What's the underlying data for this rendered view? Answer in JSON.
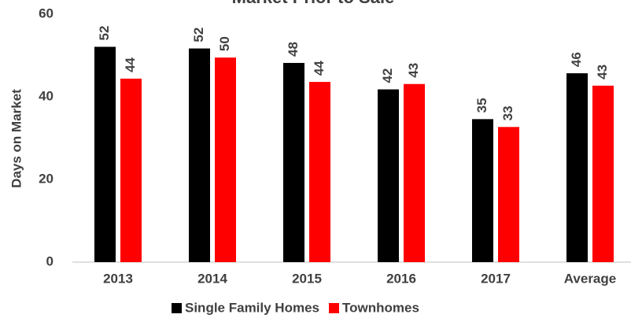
{
  "chart_data": {
    "type": "bar",
    "title": "Market Prior to Sale",
    "y_label": "Days on Market",
    "categories": [
      "2013",
      "2014",
      "2015",
      "2016",
      "2017",
      "Average"
    ],
    "series": [
      {
        "name": "Single Family Homes",
        "color": "#000000",
        "values": [
          52.1,
          51.7,
          48.2,
          41.8,
          34.6,
          45.7
        ],
        "value_labels": [
          "52",
          "52",
          "48",
          "42",
          "35",
          "46"
        ]
      },
      {
        "name": "Townhomes",
        "color": "#ff0000",
        "values": [
          44.4,
          49.5,
          43.6,
          43.1,
          32.7,
          42.7
        ],
        "value_labels": [
          "44",
          "50",
          "44",
          "43",
          "33",
          "43"
        ]
      }
    ],
    "ylim": [
      0,
      60
    ],
    "yticks": [
      0,
      20,
      40,
      60
    ],
    "grid": false,
    "legend": "bottom"
  }
}
